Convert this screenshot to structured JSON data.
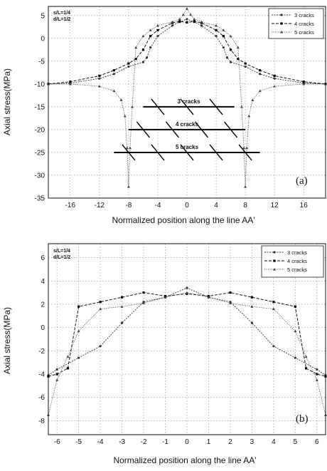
{
  "chart_data": [
    {
      "type": "line",
      "panel_label": "(a)",
      "params": [
        "s/L=1/4",
        "d/L=1/2"
      ],
      "xlabel": "Normalized position along the line AA'",
      "ylabel": "Axial stress(MPa)",
      "xlim": [
        -19,
        19
      ],
      "ylim": [
        -35,
        7
      ],
      "xticks": [
        -16,
        -12,
        -8,
        -4,
        0,
        4,
        8,
        12,
        16
      ],
      "yticks": [
        5,
        0,
        -5,
        -10,
        -15,
        -20,
        -25,
        -30,
        -35
      ],
      "xgrid": [
        -16,
        -12,
        -8,
        -4,
        0,
        4,
        8,
        12,
        16
      ],
      "ygrid": [
        5,
        0,
        -5,
        -10,
        -15,
        -20,
        -25,
        -30
      ],
      "grid": true,
      "legend_position": "top-right",
      "series": [
        {
          "name": "3 cracks",
          "color": "#333333",
          "x": [
            -19,
            -16,
            -12,
            -10,
            -8,
            -6,
            -5.5,
            -5,
            -4,
            -2,
            -1,
            0,
            1,
            2,
            4,
            5,
            5.5,
            6,
            8,
            10,
            12,
            16,
            19
          ],
          "y": [
            -10,
            -9.8,
            -8.8,
            -7.8,
            -6.2,
            -5.2,
            -4.2,
            -2,
            0.5,
            2.8,
            3.6,
            4.2,
            3.6,
            2.8,
            0.5,
            -2,
            -4.2,
            -5.2,
            -6.2,
            -7.8,
            -8.8,
            -9.8,
            -10
          ]
        },
        {
          "name": "4 cracks",
          "color": "#000000",
          "x": [
            -19,
            -16,
            -12,
            -10,
            -8,
            -7,
            -6,
            -5,
            -4,
            -2,
            -1,
            0,
            1,
            2,
            4,
            5,
            6,
            7,
            8,
            10,
            12,
            16,
            19
          ],
          "y": [
            -10,
            -9.5,
            -8.2,
            -7,
            -5.5,
            -4.5,
            -2.5,
            0.5,
            1.8,
            3.4,
            3.7,
            3.5,
            3.7,
            3.4,
            1.8,
            0.5,
            -2.5,
            -4.5,
            -5.5,
            -7,
            -8.2,
            -9.5,
            -10
          ]
        },
        {
          "name": "5 cracks",
          "color": "#444444",
          "x": [
            -19,
            -16,
            -12,
            -10,
            -9,
            -8.5,
            -8.2,
            -8,
            -7.8,
            -7.5,
            -7,
            -6,
            -5,
            -4,
            -2,
            -1,
            -0.5,
            0,
            0.5,
            1,
            2,
            4,
            5,
            6,
            7,
            7.5,
            7.8,
            8,
            8.2,
            8.5,
            9,
            10,
            12,
            16,
            19
          ],
          "y": [
            -10,
            -10,
            -10.5,
            -11.5,
            -13.5,
            -17,
            -24,
            -32.5,
            -24,
            -15,
            -2,
            0.5,
            1.8,
            2.8,
            3.6,
            4.2,
            5.2,
            6.5,
            5.2,
            4.2,
            3.6,
            2.8,
            1.8,
            0.5,
            -2,
            -15,
            -24,
            -32.5,
            -24,
            -17,
            -13.5,
            -11.5,
            -10.5,
            -10,
            -10
          ]
        }
      ],
      "annotations": [
        {
          "text": "3 cracks",
          "line": [
            -6,
            -15,
            6.5,
            -15
          ],
          "marks": [
            -4,
            0,
            4
          ]
        },
        {
          "text": "4 cracks",
          "line": [
            -8,
            -20,
            8,
            -20
          ],
          "marks": [
            -6,
            -2,
            2,
            6
          ]
        },
        {
          "text": "5 cracks",
          "line": [
            -10,
            -25,
            10,
            -25
          ],
          "marks": [
            -8,
            -4,
            0,
            4,
            8
          ]
        }
      ]
    },
    {
      "type": "line",
      "panel_label": "(b)",
      "params": [
        "s/L=1/4",
        "d/L=1/2"
      ],
      "xlabel": "Normalized position along the line AA'",
      "ylabel": "Axial stress(MPa)",
      "xlim": [
        -6.4,
        6.4
      ],
      "ylim": [
        -9.2,
        7.2
      ],
      "xticks": [
        -6,
        -5,
        -4,
        -3,
        -2,
        -1,
        0,
        1,
        2,
        3,
        4,
        5,
        6
      ],
      "yticks": [
        6,
        4,
        2,
        0,
        -2,
        -4,
        -6,
        -8
      ],
      "xgrid": [
        -6,
        -5,
        -4,
        -3,
        -2,
        -1,
        0,
        1,
        2,
        3,
        4,
        5,
        6
      ],
      "ygrid": [
        6,
        4,
        2,
        0,
        -2,
        -4,
        -6,
        -8
      ],
      "grid": true,
      "legend_position": "top-right",
      "series": [
        {
          "name": "3 cracks",
          "color": "#333333",
          "x": [
            -6.4,
            -6,
            -5,
            -4,
            -3,
            -2,
            -1,
            0,
            1,
            2,
            3,
            4,
            5,
            6,
            6.4
          ],
          "y": [
            -4.1,
            -3.6,
            -2.6,
            -1.6,
            0.4,
            2.2,
            2.6,
            3.4,
            2.6,
            2.2,
            0.4,
            -1.6,
            -2.6,
            -3.6,
            -4.1
          ]
        },
        {
          "name": "4 cracks",
          "color": "#000000",
          "x": [
            -6.4,
            -6,
            -5.5,
            -5,
            -4,
            -3,
            -2,
            -1,
            0,
            1,
            2,
            3,
            4,
            5,
            5.5,
            6,
            6.4
          ],
          "y": [
            -4.2,
            -4,
            -3.5,
            1.8,
            2.2,
            2.6,
            3,
            2.7,
            2.9,
            2.7,
            3,
            2.6,
            2.2,
            1.8,
            -3.5,
            -4,
            -4.2
          ]
        },
        {
          "name": "5 cracks",
          "color": "#444444",
          "x": [
            -6.4,
            -6,
            -5.5,
            -5,
            -4,
            -3,
            -2,
            -1,
            0,
            1,
            2,
            3,
            4,
            5,
            5.5,
            6,
            6.4
          ],
          "y": [
            -7.5,
            -4.5,
            -2.5,
            -0.3,
            1.6,
            1.8,
            2.1,
            2.6,
            3,
            2.6,
            2.1,
            1.8,
            1.6,
            -0.3,
            -2.5,
            -4.5,
            -7.5
          ]
        }
      ]
    }
  ]
}
